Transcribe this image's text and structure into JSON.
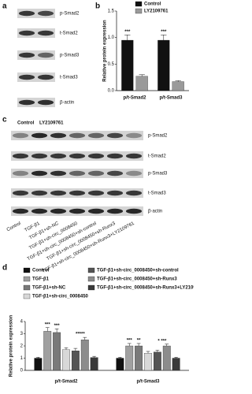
{
  "panel_labels": [
    "a",
    "b",
    "c",
    "d"
  ],
  "blot_a": {
    "rows": [
      "p-Smad2",
      "t-Smad2",
      "p-Smad3",
      "t-Smad3",
      "β-actin"
    ]
  },
  "blot_c": {
    "header": [
      "Control",
      "LY2109761"
    ],
    "rows": [
      "p-Smad2",
      "t-Smad2",
      "p-Smad3",
      "t-Smad3",
      "β-actin"
    ],
    "lanes": [
      "Control",
      "TGF-β1",
      "TGF-β1+sh-NC",
      "TGF-β1+sh-circ_0008450",
      "TGF-β1+sh-circ_0008450+sh-control",
      "TGF-β1+sh-circ_0008450+sh-Runx3",
      "TGF-β1+sh-circ_0008450+sh-Runx3+LY2109761"
    ]
  },
  "chart_data": [
    {
      "type": "bar",
      "y_label": "Relative protein expression",
      "categories": [
        "p/t-Smad2",
        "p/t-Smad3"
      ],
      "series": [
        {
          "name": "Control",
          "color": "#111111",
          "values": [
            0.95,
            0.95
          ],
          "errors": [
            0.1,
            0.1
          ]
        },
        {
          "name": "LY2109761",
          "color": "#9a9a9a",
          "values": [
            0.27,
            0.17
          ],
          "errors": [
            0.03,
            0.02
          ]
        }
      ],
      "ylim": [
        0,
        1.5
      ],
      "yticks": [
        {
          "value": 0,
          "label": "0.0"
        },
        {
          "value": 0.5,
          "label": "0.5"
        },
        {
          "value": 1,
          "label": "1.0"
        },
        {
          "value": 1.5,
          "label": "1.5"
        }
      ],
      "annotations": [
        "***",
        "***"
      ]
    },
    {
      "type": "bar",
      "y_label": "Relative protein expression",
      "categories": [
        "p/t-Smad2",
        "p/t-Smad3"
      ],
      "series": [
        {
          "name": "Control",
          "color": "#111111",
          "values": [
            1.0,
            1.0
          ],
          "errors": [
            0.08,
            0.08
          ]
        },
        {
          "name": "TGF-β1",
          "color": "#a0a0a0",
          "values": [
            3.2,
            2.0
          ],
          "errors": [
            0.3,
            0.2
          ]
        },
        {
          "name": "TGF-β1+sh-NC",
          "color": "#7a7a7a",
          "values": [
            3.1,
            2.0
          ],
          "errors": [
            0.3,
            0.2
          ]
        },
        {
          "name": "TGF-β1+sh-circ_0008450",
          "color": "#d8d8d8",
          "values": [
            1.7,
            1.4
          ],
          "errors": [
            0.15,
            0.15
          ]
        },
        {
          "name": "TGF-β1+sh-circ_0008450+sh-control",
          "color": "#555555",
          "values": [
            1.6,
            1.5
          ],
          "errors": [
            0.2,
            0.15
          ]
        },
        {
          "name": "TGF-β1+sh-circ_0008450+sh-Runx3",
          "color": "#8c8c8c",
          "values": [
            2.5,
            2.0
          ],
          "errors": [
            0.2,
            0.15
          ]
        },
        {
          "name": "TGF-β1+sh-circ_0008450+sh-Runx3+LY2109761",
          "color": "#3a3a3a",
          "values": [
            1.05,
            1.0
          ],
          "errors": [
            0.1,
            0.08
          ]
        }
      ],
      "ylim": [
        0,
        4
      ],
      "yticks": [
        0,
        1,
        2,
        3,
        4
      ],
      "annotations": [
        "***",
        "***",
        "*****",
        "***",
        "**",
        "* ***"
      ]
    }
  ]
}
